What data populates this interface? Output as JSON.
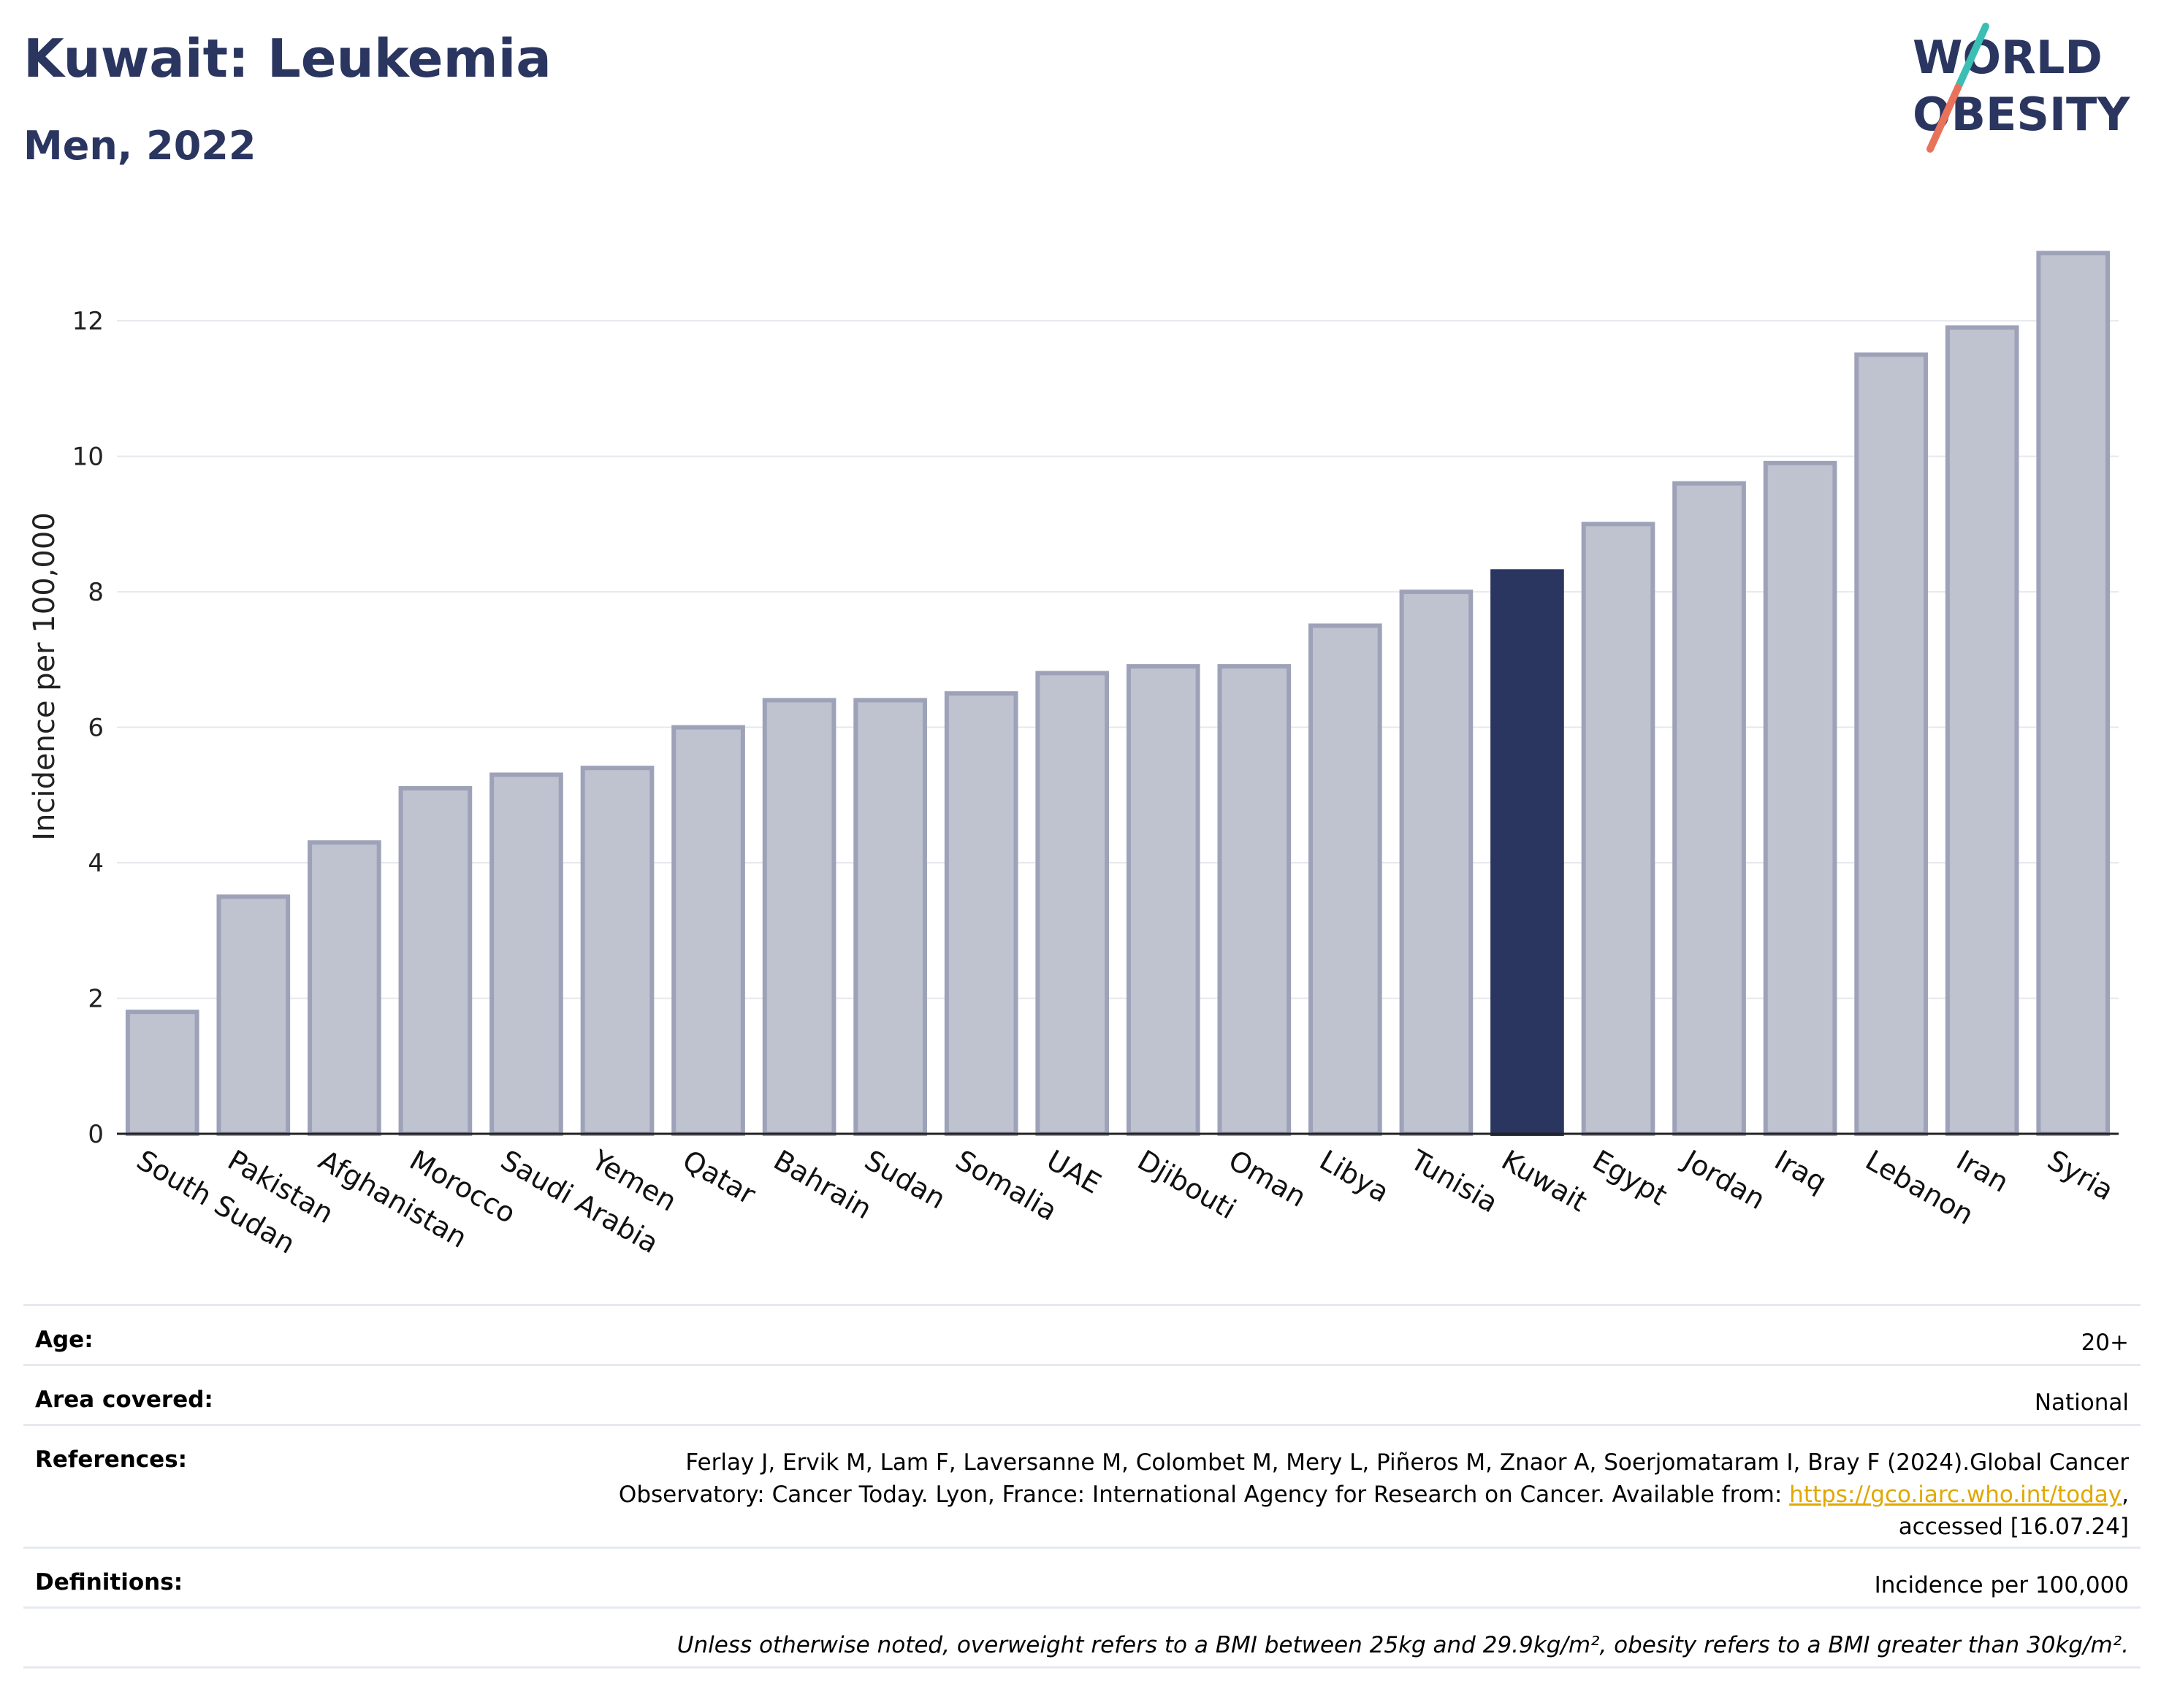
{
  "header": {
    "title": "Kuwait: Leukemia",
    "subtitle": "Men, 2022",
    "logo_line1": "WORLD",
    "logo_line2": "OBESITY"
  },
  "colors": {
    "title": "#2a3560",
    "bar_default_fill": "#bfc2cf",
    "bar_default_stroke": "#9da2b8",
    "bar_highlight": "#2a3560",
    "logo_teal": "#3bbfb5",
    "logo_coral": "#e8735a",
    "link": "#e0a800"
  },
  "chart_data": {
    "type": "bar",
    "ylabel": "Incidence per 100,000",
    "xlabel": "",
    "ylim": [
      0,
      13.5
    ],
    "yticks": [
      0,
      2,
      4,
      6,
      8,
      10,
      12
    ],
    "grid": true,
    "highlight": "Kuwait",
    "categories": [
      "South Sudan",
      "Pakistan",
      "Afghanistan",
      "Morocco",
      "Saudi Arabia",
      "Yemen",
      "Qatar",
      "Bahrain",
      "Sudan",
      "Somalia",
      "UAE",
      "Djibouti",
      "Oman",
      "Libya",
      "Tunisia",
      "Kuwait",
      "Egypt",
      "Jordan",
      "Iraq",
      "Lebanon",
      "Iran",
      "Syria"
    ],
    "values": [
      1.8,
      3.5,
      4.3,
      5.1,
      5.3,
      5.4,
      6.0,
      6.4,
      6.4,
      6.5,
      6.8,
      6.9,
      6.9,
      7.5,
      8.0,
      8.3,
      9.0,
      9.6,
      9.9,
      11.5,
      11.9,
      13.0
    ]
  },
  "info": {
    "age_label": "Age:",
    "age_value": "20+",
    "area_label": "Area covered:",
    "area_value": "National",
    "references_label": "References:",
    "references_line1": "Ferlay J, Ervik M, Lam F, Laversanne M, Colombet M, Mery L, Piñeros M, Znaor A, Soerjomataram I, Bray F (2024).Global Cancer",
    "references_line2_pre": "Observatory: Cancer Today. Lyon, France: International Agency for Research on Cancer. Available from: ",
    "references_link": "https://gco.iarc.who.int/today",
    "references_line2_post": ",",
    "references_line3": "accessed [16.07.24]",
    "definitions_label": "Definitions:",
    "definitions_value": "Incidence per 100,000",
    "note": "Unless otherwise noted, overweight refers to a BMI between 25kg and 29.9kg/m², obesity refers to a BMI greater than 30kg/m²."
  }
}
